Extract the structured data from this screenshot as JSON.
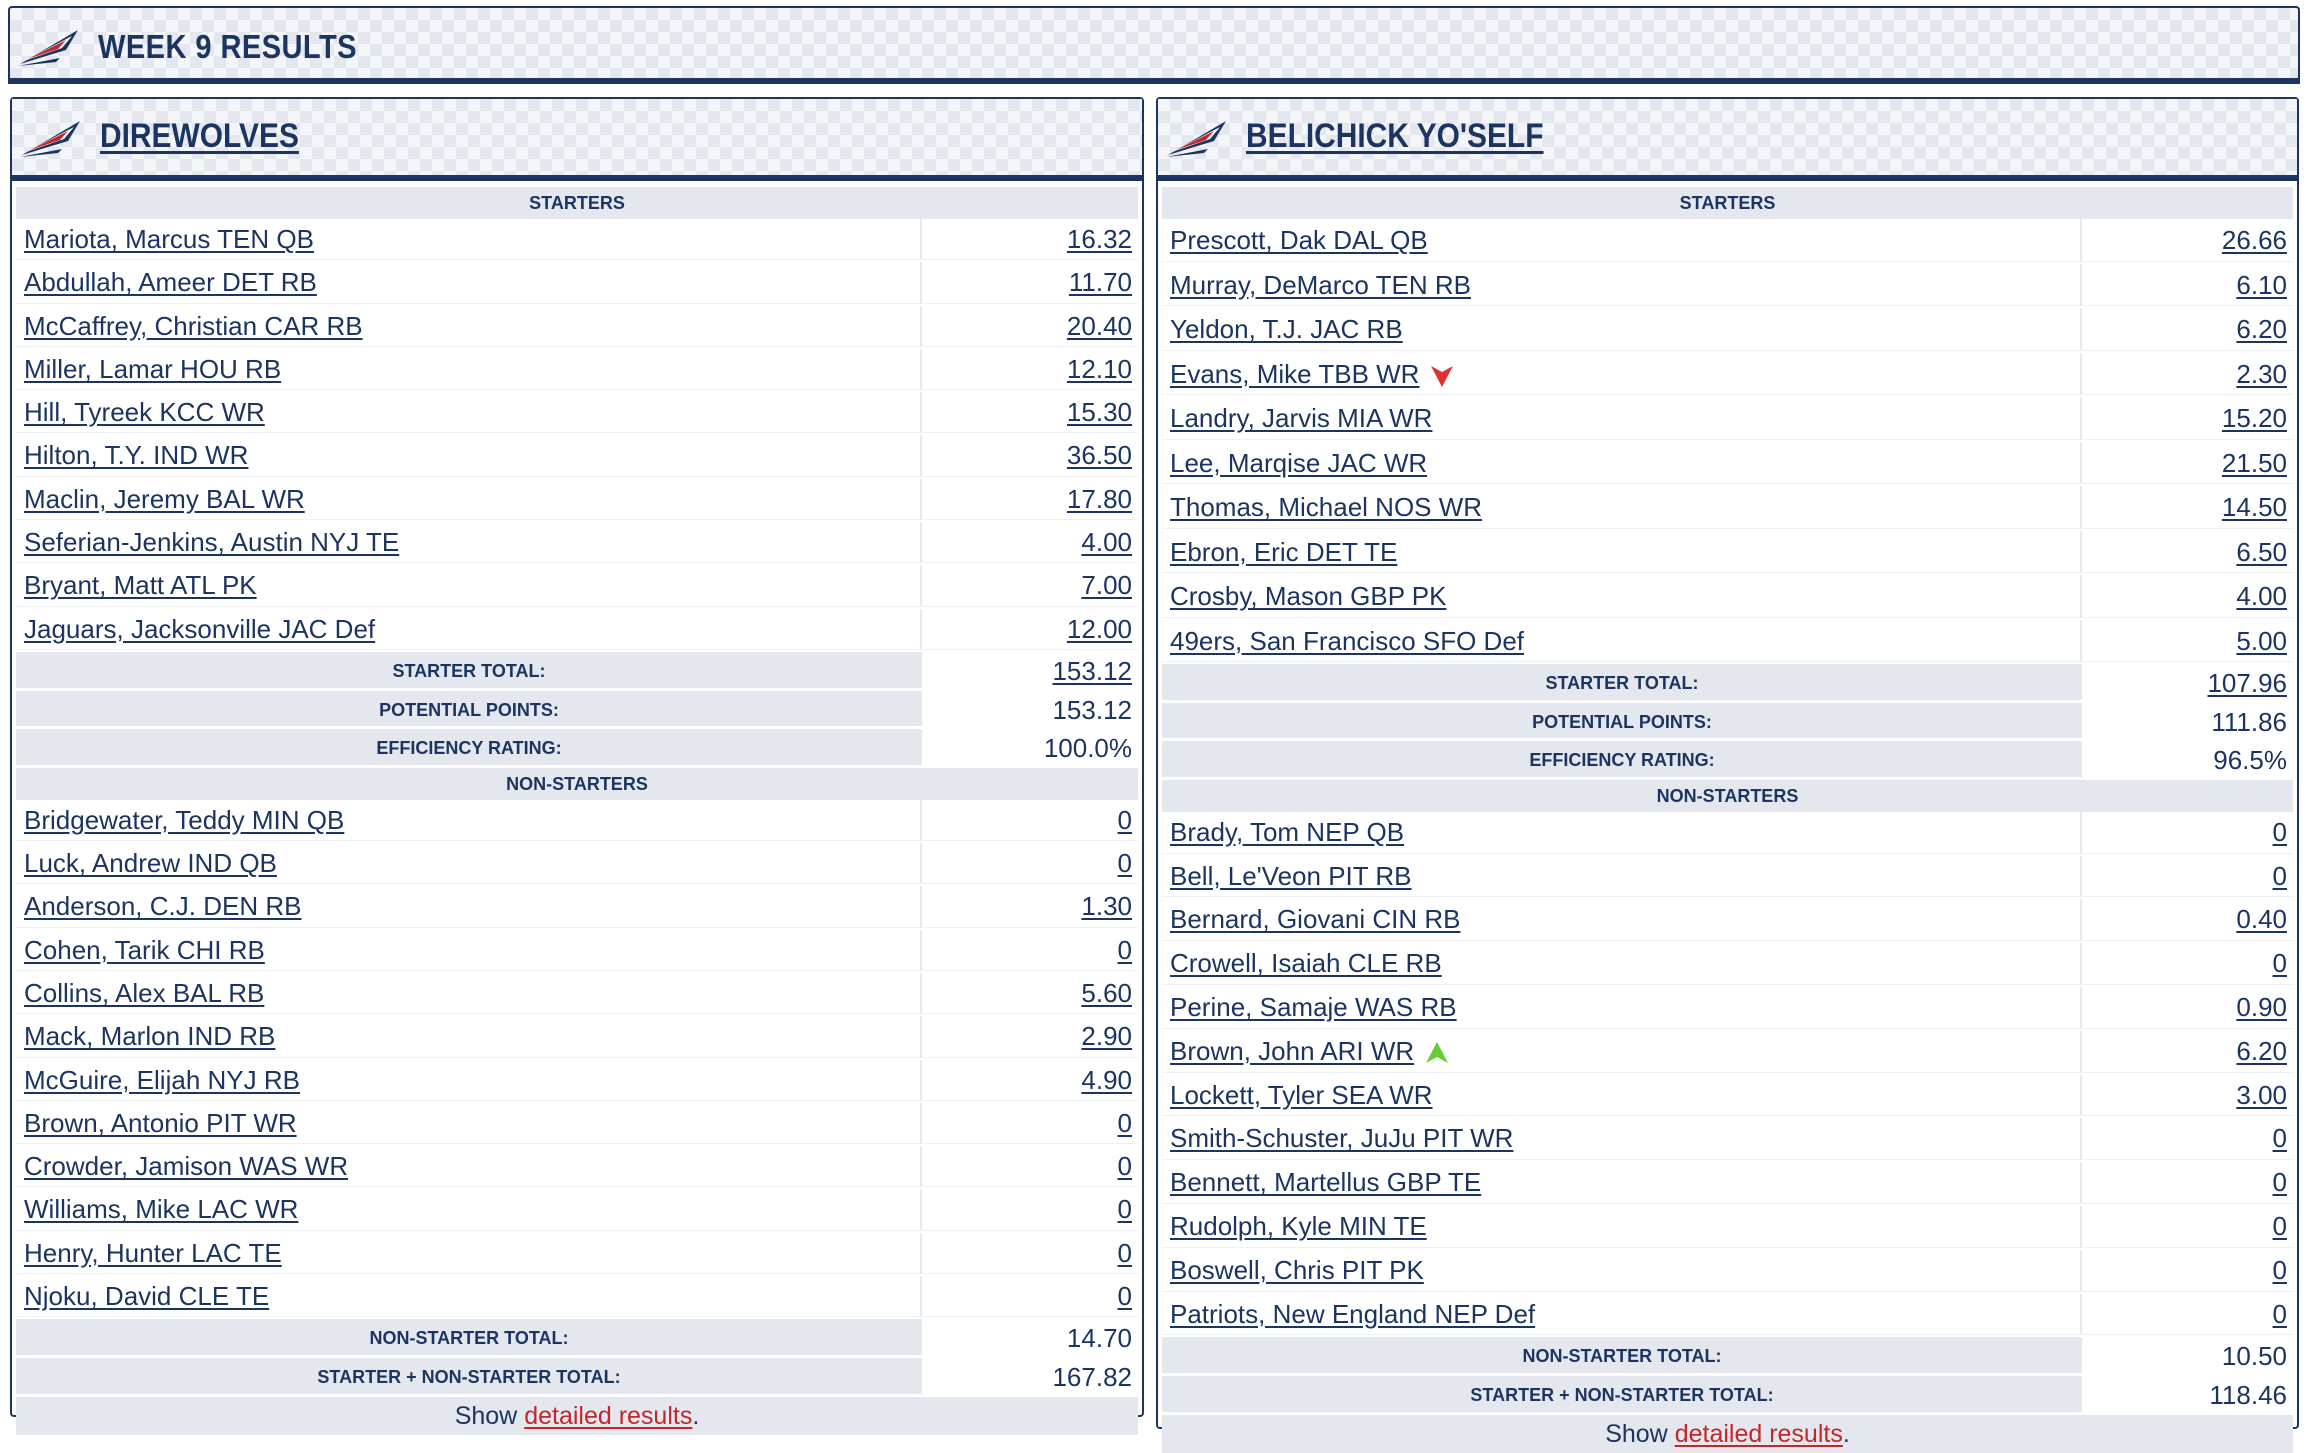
{
  "page": {
    "title": "WEEK 9 RESULTS"
  },
  "colors": {
    "navy": "#1c3560",
    "link_red": "#c0282d",
    "arrow_down": "#e03030",
    "arrow_up": "#66cc33"
  },
  "teams": [
    {
      "name": "DIREWOLVES",
      "starters_label": "STARTERS",
      "starters": [
        {
          "player": "Mariota, Marcus TEN QB",
          "points": "16.32"
        },
        {
          "player": "Abdullah, Ameer DET RB",
          "points": "11.70"
        },
        {
          "player": "McCaffrey, Christian CAR RB",
          "points": "20.40"
        },
        {
          "player": "Miller, Lamar HOU RB",
          "points": "12.10"
        },
        {
          "player": "Hill, Tyreek KCC WR",
          "points": "15.30"
        },
        {
          "player": "Hilton, T.Y. IND WR",
          "points": "36.50"
        },
        {
          "player": "Maclin, Jeremy BAL WR",
          "points": "17.80"
        },
        {
          "player": "Seferian-Jenkins, Austin NYJ TE",
          "points": "4.00"
        },
        {
          "player": "Bryant, Matt ATL PK",
          "points": "7.00"
        },
        {
          "player": "Jaguars, Jacksonville JAC Def",
          "points": "12.00"
        }
      ],
      "starter_total_label": "STARTER TOTAL:",
      "starter_total": "153.12",
      "potential_label": "POTENTIAL POINTS:",
      "potential": "153.12",
      "efficiency_label": "EFFICIENCY RATING:",
      "efficiency": "100.0%",
      "nonstarters_label": "NON-STARTERS",
      "nonstarters": [
        {
          "player": "Bridgewater, Teddy MIN QB",
          "points": "0"
        },
        {
          "player": "Luck, Andrew IND QB",
          "points": "0"
        },
        {
          "player": "Anderson, C.J. DEN RB",
          "points": "1.30"
        },
        {
          "player": "Cohen, Tarik CHI RB",
          "points": "0"
        },
        {
          "player": "Collins, Alex BAL RB",
          "points": "5.60"
        },
        {
          "player": "Mack, Marlon IND RB",
          "points": "2.90"
        },
        {
          "player": "McGuire, Elijah NYJ RB",
          "points": "4.90"
        },
        {
          "player": "Brown, Antonio PIT WR",
          "points": "0"
        },
        {
          "player": "Crowder, Jamison WAS WR",
          "points": "0"
        },
        {
          "player": "Williams, Mike LAC WR",
          "points": "0"
        },
        {
          "player": "Henry, Hunter LAC TE",
          "points": "0"
        },
        {
          "player": "Njoku, David CLE TE",
          "points": "0"
        }
      ],
      "nonstarter_total_label": "NON-STARTER TOTAL:",
      "nonstarter_total": "14.70",
      "combined_label": "STARTER + NON-STARTER TOTAL:",
      "combined_total": "167.82",
      "footer_pre": "Show ",
      "footer_link": "detailed results",
      "footer_post": "."
    },
    {
      "name": "BELICHICK YO'SELF",
      "starters_label": "STARTERS",
      "starters": [
        {
          "player": "Prescott, Dak DAL QB",
          "points": "26.66"
        },
        {
          "player": "Murray, DeMarco TEN RB",
          "points": "6.10"
        },
        {
          "player": "Yeldon, T.J. JAC RB",
          "points": "6.20"
        },
        {
          "player": "Evans, Mike TBB WR",
          "points": "2.30",
          "indicator": "down"
        },
        {
          "player": "Landry, Jarvis MIA WR",
          "points": "15.20"
        },
        {
          "player": "Lee, Marqise JAC WR",
          "points": "21.50"
        },
        {
          "player": "Thomas, Michael NOS WR",
          "points": "14.50"
        },
        {
          "player": "Ebron, Eric DET TE",
          "points": "6.50"
        },
        {
          "player": "Crosby, Mason GBP PK",
          "points": "4.00"
        },
        {
          "player": "49ers, San Francisco SFO Def",
          "points": "5.00"
        }
      ],
      "starter_total_label": "STARTER TOTAL:",
      "starter_total": "107.96",
      "potential_label": "POTENTIAL POINTS:",
      "potential": "111.86",
      "efficiency_label": "EFFICIENCY RATING:",
      "efficiency": "96.5%",
      "nonstarters_label": "NON-STARTERS",
      "nonstarters": [
        {
          "player": "Brady, Tom NEP QB",
          "points": "0"
        },
        {
          "player": "Bell, Le'Veon PIT RB",
          "points": "0"
        },
        {
          "player": "Bernard, Giovani CIN RB",
          "points": "0.40"
        },
        {
          "player": "Crowell, Isaiah CLE RB",
          "points": "0"
        },
        {
          "player": "Perine, Samaje WAS RB",
          "points": "0.90"
        },
        {
          "player": "Brown, John ARI WR",
          "points": "6.20",
          "indicator": "up"
        },
        {
          "player": "Lockett, Tyler SEA WR",
          "points": "3.00"
        },
        {
          "player": "Smith-Schuster, JuJu PIT WR",
          "points": "0"
        },
        {
          "player": "Bennett, Martellus GBP TE",
          "points": "0"
        },
        {
          "player": "Rudolph, Kyle MIN TE",
          "points": "0"
        },
        {
          "player": "Boswell, Chris PIT PK",
          "points": "0"
        },
        {
          "player": "Patriots, New England NEP Def",
          "points": "0"
        }
      ],
      "nonstarter_total_label": "NON-STARTER TOTAL:",
      "nonstarter_total": "10.50",
      "combined_label": "STARTER + NON-STARTER TOTAL:",
      "combined_total": "118.46",
      "footer_pre": "Show ",
      "footer_link": "detailed results",
      "footer_post": "."
    }
  ]
}
